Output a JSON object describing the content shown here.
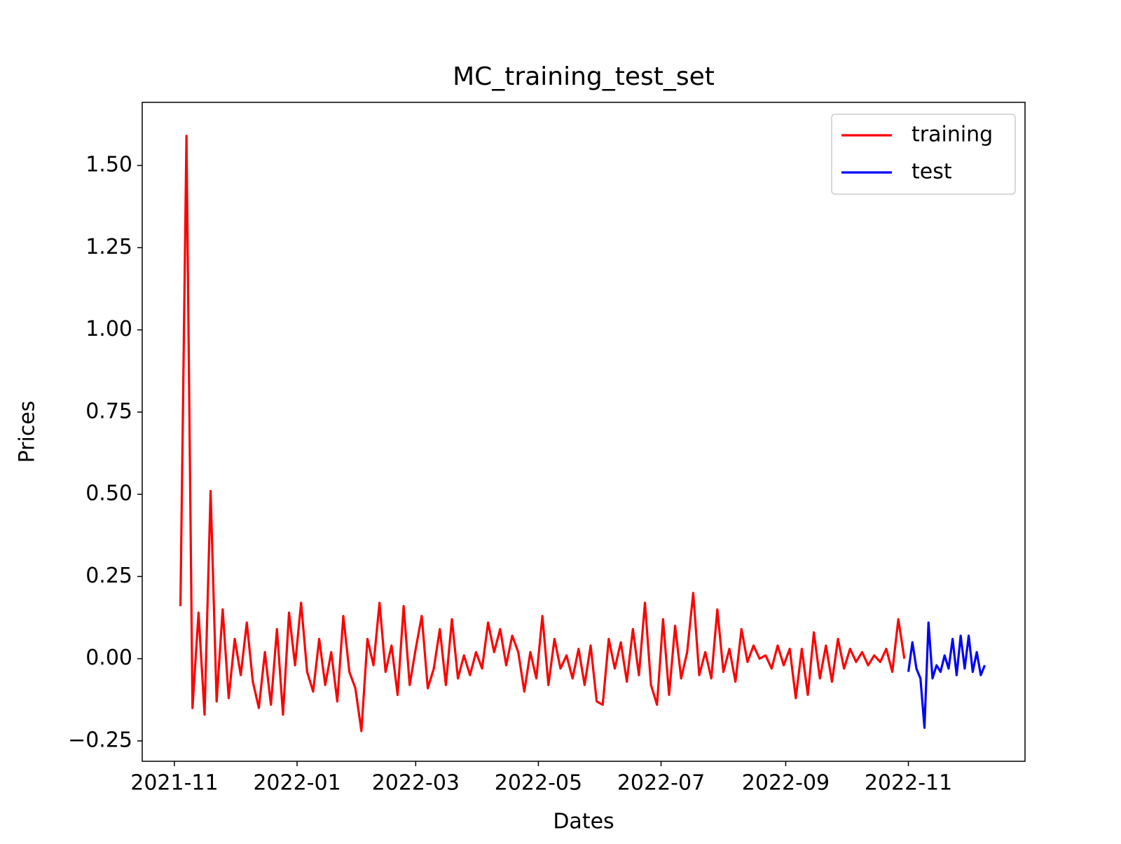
{
  "chart_data": {
    "type": "line",
    "title": "MC_training_test_set",
    "x_label": "Dates",
    "y_label": "Prices",
    "xlim": [
      18916,
      19355
    ],
    "xticks": [
      {
        "value": 18932,
        "label": "2021-11"
      },
      {
        "value": 18993,
        "label": "2022-01"
      },
      {
        "value": 19052,
        "label": "2022-03"
      },
      {
        "value": 19113,
        "label": "2022-05"
      },
      {
        "value": 19174,
        "label": "2022-07"
      },
      {
        "value": 19236,
        "label": "2022-09"
      },
      {
        "value": 19297,
        "label": "2022-11"
      }
    ],
    "ylim": [
      -0.312,
      1.692
    ],
    "yticks": [
      {
        "value": -0.25,
        "label": "−0.25"
      },
      {
        "value": 0,
        "label": "0.00"
      },
      0.25,
      {
        "value": 0.5,
        "label": "0.50"
      },
      0.75,
      {
        "value": 1,
        "label": "1.00"
      },
      1.25,
      {
        "value": 1.5,
        "label": "1.50"
      }
    ],
    "legend": "upper right",
    "series": [
      {
        "name": "training",
        "color": "#ff0000",
        "x": [
          18935,
          18938,
          18941,
          18944,
          18947,
          18950,
          18953,
          18956,
          18959,
          18962,
          18965,
          18968,
          18971,
          18974,
          18977,
          18980,
          18983,
          18986,
          18989,
          18992,
          18995,
          18998,
          19001,
          19004,
          19007,
          19010,
          19013,
          19016,
          19019,
          19022,
          19025,
          19028,
          19031,
          19034,
          19037,
          19040,
          19043,
          19046,
          19049,
          19052,
          19055,
          19058,
          19061,
          19064,
          19067,
          19070,
          19073,
          19076,
          19079,
          19082,
          19085,
          19088,
          19091,
          19094,
          19097,
          19100,
          19103,
          19106,
          19109,
          19112,
          19115,
          19118,
          19121,
          19124,
          19127,
          19130,
          19133,
          19136,
          19139,
          19142,
          19145,
          19148,
          19151,
          19154,
          19157,
          19160,
          19163,
          19166,
          19169,
          19172,
          19175,
          19178,
          19181,
          19184,
          19187,
          19190,
          19193,
          19196,
          19199,
          19202,
          19205,
          19208,
          19211,
          19214,
          19217,
          19220,
          19223,
          19226,
          19229,
          19232,
          19235,
          19238,
          19241,
          19244,
          19247,
          19250,
          19253,
          19256,
          19259,
          19262,
          19265,
          19268,
          19271,
          19274,
          19277,
          19280,
          19283,
          19286,
          19289,
          19292,
          19295
        ],
        "values": [
          0.16,
          1.59,
          -0.15,
          0.14,
          -0.17,
          0.51,
          -0.13,
          0.15,
          -0.12,
          0.06,
          -0.05,
          0.11,
          -0.07,
          -0.15,
          0.02,
          -0.14,
          0.09,
          -0.17,
          0.14,
          -0.02,
          0.17,
          -0.04,
          -0.1,
          0.06,
          -0.08,
          0.02,
          -0.13,
          0.13,
          -0.04,
          -0.09,
          -0.22,
          0.06,
          -0.02,
          0.17,
          -0.04,
          0.04,
          -0.11,
          0.16,
          -0.08,
          0.03,
          0.13,
          -0.09,
          -0.03,
          0.09,
          -0.08,
          0.12,
          -0.06,
          0.01,
          -0.05,
          0.02,
          -0.03,
          0.11,
          0.02,
          0.09,
          -0.02,
          0.07,
          0.02,
          -0.1,
          0.02,
          -0.06,
          0.13,
          -0.08,
          0.06,
          -0.03,
          0.01,
          -0.06,
          0.03,
          -0.08,
          0.04,
          -0.13,
          -0.14,
          0.06,
          -0.03,
          0.05,
          -0.07,
          0.09,
          -0.05,
          0.17,
          -0.08,
          -0.14,
          0.12,
          -0.11,
          0.1,
          -0.06,
          0.02,
          0.2,
          -0.05,
          0.02,
          -0.06,
          0.15,
          -0.04,
          0.03,
          -0.07,
          0.09,
          -0.01,
          0.04,
          0,
          0.01,
          -0.03,
          0.04,
          -0.02,
          0.03,
          -0.12,
          0.03,
          -0.11,
          0.08,
          -0.06,
          0.04,
          -0.07,
          0.06,
          -0.03,
          0.03,
          -0.01,
          0.02,
          -0.02,
          0.01,
          -0.01,
          0.03,
          -0.04,
          0.12,
          0
        ]
      },
      {
        "name": "test",
        "color": "#0000ff",
        "x": [
          19297,
          19299,
          19301,
          19303,
          19305,
          19307,
          19309,
          19311,
          19313,
          19315,
          19317,
          19319,
          19321,
          19323,
          19325,
          19327,
          19329,
          19331,
          19333,
          19335
        ],
        "values": [
          -0.04,
          0.05,
          -0.03,
          -0.06,
          -0.21,
          0.11,
          -0.06,
          -0.02,
          -0.04,
          0.01,
          -0.03,
          0.06,
          -0.05,
          0.07,
          -0.03,
          0.07,
          -0.04,
          0.02,
          -0.05,
          -0.02
        ]
      }
    ]
  }
}
